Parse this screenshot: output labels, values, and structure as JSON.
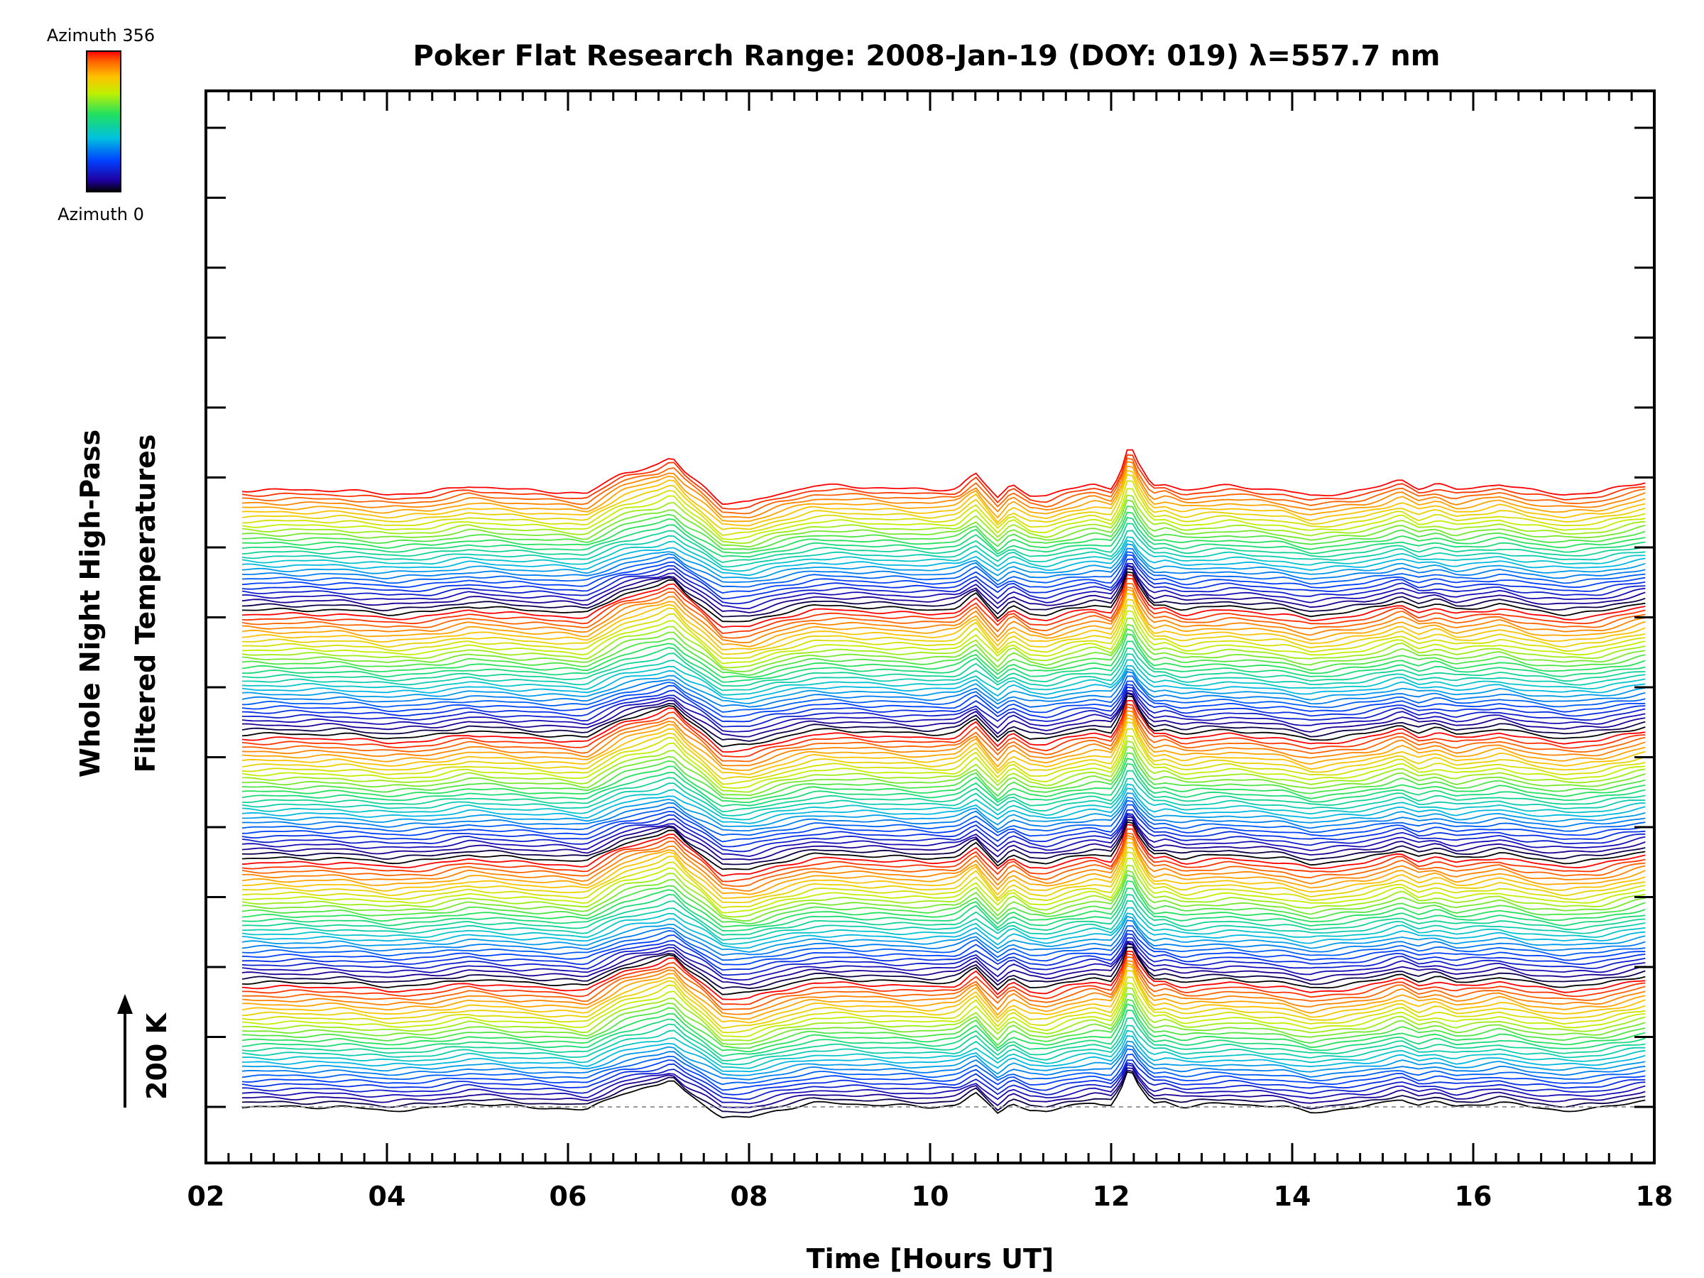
{
  "chart_data": {
    "type": "line",
    "title": "Poker Flat Research Range: 2008-Jan-19 (DOY: 019) λ=557.7 nm",
    "xlabel": "Time [Hours UT]",
    "ylabel_line1": "Whole Night High-Pass",
    "ylabel_line2": "Filtered Temperatures",
    "scale_bar_label": "200 K",
    "xlim": [
      2,
      18
    ],
    "x_tick_labels": [
      "02",
      "04",
      "06",
      "08",
      "10",
      "12",
      "14",
      "16",
      "18"
    ],
    "x_ticks": [
      2,
      4,
      6,
      8,
      10,
      12,
      14,
      16,
      18
    ],
    "grid": false,
    "colorbar": {
      "top_label": "Azimuth 356",
      "bottom_label": "Azimuth 0",
      "colormap": "rainbow",
      "range": [
        0,
        356
      ]
    },
    "series_count": 140,
    "series_start_hour": 2.4,
    "series_end_hour": 17.9,
    "base_profile_x": [
      2.4,
      3.0,
      3.5,
      4.0,
      4.5,
      4.9,
      5.5,
      6.0,
      6.2,
      6.6,
      7.0,
      7.15,
      7.3,
      7.5,
      7.7,
      8.0,
      8.3,
      8.7,
      9.0,
      9.5,
      10.0,
      10.3,
      10.5,
      10.6,
      10.75,
      10.9,
      11.1,
      11.3,
      11.5,
      11.8,
      12.0,
      12.1,
      12.2,
      12.3,
      12.45,
      12.6,
      12.8,
      13.0,
      13.3,
      13.6,
      13.9,
      14.2,
      14.4,
      14.6,
      14.8,
      15.0,
      15.2,
      15.4,
      15.6,
      15.8,
      16.0,
      16.3,
      16.6,
      17.0,
      17.4,
      17.9
    ],
    "base_profile_y": [
      0,
      0,
      0,
      -10,
      -5,
      10,
      0,
      -5,
      -10,
      40,
      60,
      75,
      40,
      10,
      -30,
      -30,
      -10,
      10,
      10,
      5,
      0,
      5,
      40,
      15,
      -20,
      15,
      -10,
      -15,
      0,
      15,
      5,
      40,
      110,
      60,
      10,
      15,
      0,
      5,
      10,
      5,
      0,
      -15,
      -10,
      -5,
      0,
      10,
      25,
      5,
      15,
      0,
      5,
      15,
      0,
      -10,
      -5,
      20
    ]
  }
}
